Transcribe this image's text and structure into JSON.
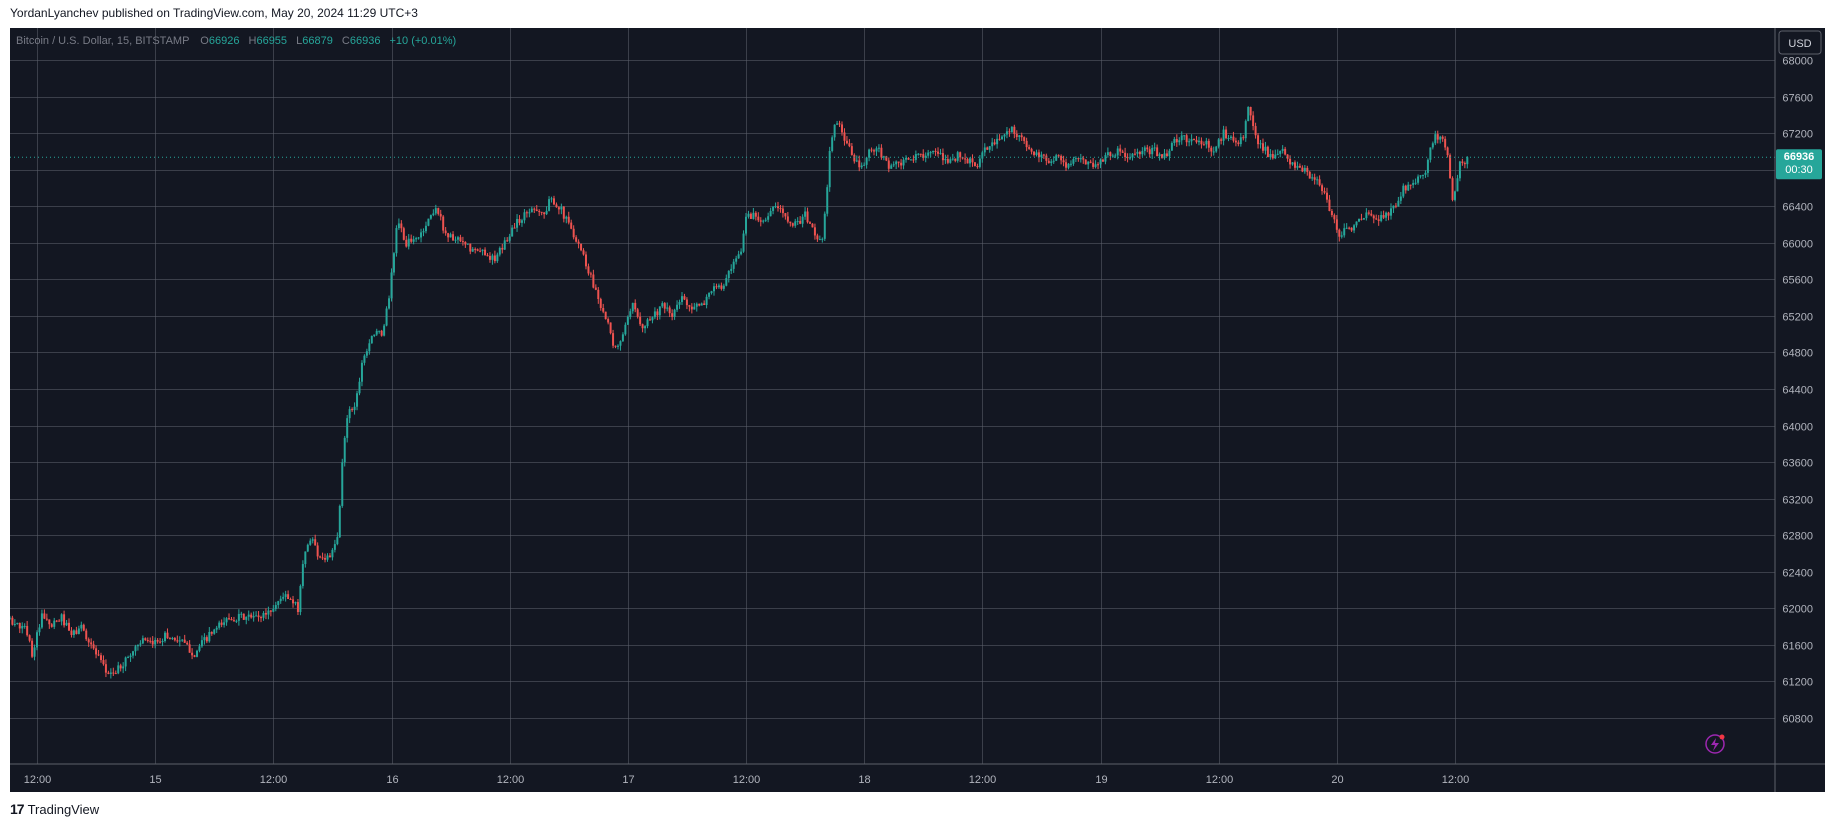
{
  "header": {
    "attribution": "YordanLyanchev published on TradingView.com, May 20, 2024 11:29 UTC+3"
  },
  "legend": {
    "symbol": "Bitcoin / U.S. Dollar, 15, BITSTAMP",
    "o_label": "O",
    "o_value": "66926",
    "h_label": "H",
    "h_value": "66955",
    "l_label": "L",
    "l_value": "66879",
    "c_label": "C",
    "c_value": "66936",
    "change": "+10 (+0.01%)"
  },
  "currency_button": "USD",
  "price_tag": {
    "price": "66936",
    "countdown": "00:30"
  },
  "footer": {
    "brand": "TradingView",
    "mark": "17"
  },
  "colors": {
    "background": "#131722",
    "grid": "#5d606b",
    "up": "#26a69a",
    "down": "#ef5350",
    "axis_text": "#b2b5be",
    "legend_text": "#787b86"
  },
  "chart_data": {
    "type": "candlestick",
    "symbol": "BTC/USD",
    "interval": "15",
    "exchange": "BITSTAMP",
    "ylim": [
      60500,
      68300
    ],
    "y_ticks": [
      68000,
      67600,
      67200,
      66800,
      66400,
      66000,
      65600,
      65200,
      64800,
      64400,
      64000,
      63600,
      63200,
      62800,
      62400,
      62000,
      61600,
      61200,
      60800
    ],
    "y_tick_labels": [
      "68000",
      "67600",
      "67200",
      "66800",
      "66400",
      "66000",
      "65600",
      "65200",
      "64800",
      "64400",
      "64000",
      "63600",
      "63200",
      "62800",
      "62400",
      "62000",
      "61600",
      "61200",
      "60800"
    ],
    "x_tick_labels": [
      "12:00",
      "15",
      "12:00",
      "16",
      "12:00",
      "17",
      "12:00",
      "18",
      "12:00",
      "19",
      "12:00",
      "20",
      "12:00"
    ],
    "x_ticks_hours": [
      12,
      24,
      36,
      48,
      60,
      72,
      84,
      96,
      108,
      120,
      132,
      144,
      156
    ],
    "x_range_hours": [
      4.2,
      161
    ],
    "last_price": 66936,
    "price_path": [
      [
        4.5,
        62650
      ],
      [
        5.0,
        62700
      ],
      [
        5.5,
        61700
      ],
      [
        6.5,
        61900
      ],
      [
        8.0,
        61900
      ],
      [
        9.5,
        61850
      ],
      [
        11.0,
        61750
      ],
      [
        11.5,
        61500
      ],
      [
        12.5,
        61900
      ],
      [
        13.5,
        61800
      ],
      [
        14.5,
        61900
      ],
      [
        15.5,
        61700
      ],
      [
        16.5,
        61800
      ],
      [
        18.0,
        61500
      ],
      [
        19.0,
        61300
      ],
      [
        20.0,
        61300
      ],
      [
        21.5,
        61500
      ],
      [
        22.5,
        61650
      ],
      [
        23.5,
        61600
      ],
      [
        25.0,
        61700
      ],
      [
        26.5,
        61650
      ],
      [
        28.0,
        61500
      ],
      [
        29.0,
        61650
      ],
      [
        30.0,
        61750
      ],
      [
        31.5,
        61900
      ],
      [
        33.0,
        61900
      ],
      [
        34.5,
        61900
      ],
      [
        36.0,
        62000
      ],
      [
        37.0,
        62150
      ],
      [
        37.5,
        62100
      ],
      [
        38.5,
        62000
      ],
      [
        39.0,
        62500
      ],
      [
        39.8,
        62800
      ],
      [
        40.5,
        62600
      ],
      [
        41.2,
        62550
      ],
      [
        42.0,
        62600
      ],
      [
        42.6,
        62800
      ],
      [
        43.0,
        63600
      ],
      [
        43.6,
        64200
      ],
      [
        44.3,
        64200
      ],
      [
        45.0,
        64700
      ],
      [
        46.0,
        65000
      ],
      [
        47.0,
        65000
      ],
      [
        47.6,
        65300
      ],
      [
        48.2,
        65800
      ],
      [
        48.6,
        66300
      ],
      [
        49.3,
        66000
      ],
      [
        50.0,
        66000
      ],
      [
        51.0,
        66100
      ],
      [
        52.0,
        66300
      ],
      [
        52.5,
        66400
      ],
      [
        53.5,
        66100
      ],
      [
        55.0,
        66000
      ],
      [
        56.5,
        65900
      ],
      [
        57.5,
        65900
      ],
      [
        58.5,
        65800
      ],
      [
        59.5,
        66000
      ],
      [
        60.5,
        66200
      ],
      [
        61.5,
        66300
      ],
      [
        62.5,
        66400
      ],
      [
        63.5,
        66300
      ],
      [
        64.2,
        66500
      ],
      [
        65.0,
        66400
      ],
      [
        66.0,
        66200
      ],
      [
        67.0,
        66000
      ],
      [
        68.0,
        65700
      ],
      [
        69.0,
        65400
      ],
      [
        70.0,
        65100
      ],
      [
        70.6,
        64800
      ],
      [
        71.5,
        65000
      ],
      [
        72.5,
        65300
      ],
      [
        73.5,
        65100
      ],
      [
        74.5,
        65200
      ],
      [
        75.5,
        65300
      ],
      [
        76.5,
        65200
      ],
      [
        77.5,
        65400
      ],
      [
        78.5,
        65300
      ],
      [
        79.5,
        65300
      ],
      [
        80.5,
        65500
      ],
      [
        81.5,
        65500
      ],
      [
        82.5,
        65700
      ],
      [
        83.5,
        65900
      ],
      [
        84.0,
        66300
      ],
      [
        85.0,
        66300
      ],
      [
        86.0,
        66250
      ],
      [
        87.0,
        66400
      ],
      [
        88.0,
        66300
      ],
      [
        89.0,
        66200
      ],
      [
        90.0,
        66300
      ],
      [
        91.0,
        66100
      ],
      [
        91.8,
        66000
      ],
      [
        92.5,
        67000
      ],
      [
        93.2,
        67350
      ],
      [
        94.0,
        67150
      ],
      [
        95.0,
        66900
      ],
      [
        95.8,
        66800
      ],
      [
        96.5,
        67000
      ],
      [
        97.5,
        67000
      ],
      [
        98.5,
        66850
      ],
      [
        99.5,
        66850
      ],
      [
        100.5,
        66900
      ],
      [
        101.5,
        66950
      ],
      [
        102.5,
        67000
      ],
      [
        103.5,
        66950
      ],
      [
        104.5,
        66900
      ],
      [
        105.5,
        66950
      ],
      [
        106.5,
        66900
      ],
      [
        107.5,
        66850
      ],
      [
        108.5,
        67050
      ],
      [
        109.5,
        67100
      ],
      [
        110.5,
        67250
      ],
      [
        111.5,
        67200
      ],
      [
        112.5,
        67050
      ],
      [
        113.5,
        66950
      ],
      [
        114.5,
        66900
      ],
      [
        115.5,
        66950
      ],
      [
        116.5,
        66850
      ],
      [
        117.5,
        66900
      ],
      [
        118.5,
        66900
      ],
      [
        119.5,
        66850
      ],
      [
        120.5,
        66950
      ],
      [
        121.5,
        67000
      ],
      [
        122.5,
        66950
      ],
      [
        123.5,
        66950
      ],
      [
        124.5,
        67000
      ],
      [
        125.5,
        67000
      ],
      [
        126.5,
        66950
      ],
      [
        127.5,
        67100
      ],
      [
        128.5,
        67150
      ],
      [
        129.5,
        67100
      ],
      [
        130.5,
        67100
      ],
      [
        131.5,
        67000
      ],
      [
        132.5,
        67200
      ],
      [
        133.5,
        67150
      ],
      [
        134.5,
        67100
      ],
      [
        135.0,
        67500
      ],
      [
        135.8,
        67150
      ],
      [
        136.5,
        67050
      ],
      [
        137.5,
        66900
      ],
      [
        138.5,
        67000
      ],
      [
        139.5,
        66850
      ],
      [
        140.5,
        66800
      ],
      [
        141.5,
        66700
      ],
      [
        142.5,
        66600
      ],
      [
        143.5,
        66300
      ],
      [
        144.2,
        66100
      ],
      [
        145.0,
        66150
      ],
      [
        146.0,
        66200
      ],
      [
        147.0,
        66300
      ],
      [
        148.0,
        66250
      ],
      [
        149.0,
        66300
      ],
      [
        150.0,
        66400
      ],
      [
        150.8,
        66600
      ],
      [
        152.0,
        66700
      ],
      [
        153.0,
        66750
      ],
      [
        153.8,
        67150
      ],
      [
        154.5,
        67150
      ],
      [
        155.2,
        67000
      ],
      [
        155.7,
        66450
      ],
      [
        156.5,
        66850
      ],
      [
        157.3,
        66936
      ]
    ]
  }
}
